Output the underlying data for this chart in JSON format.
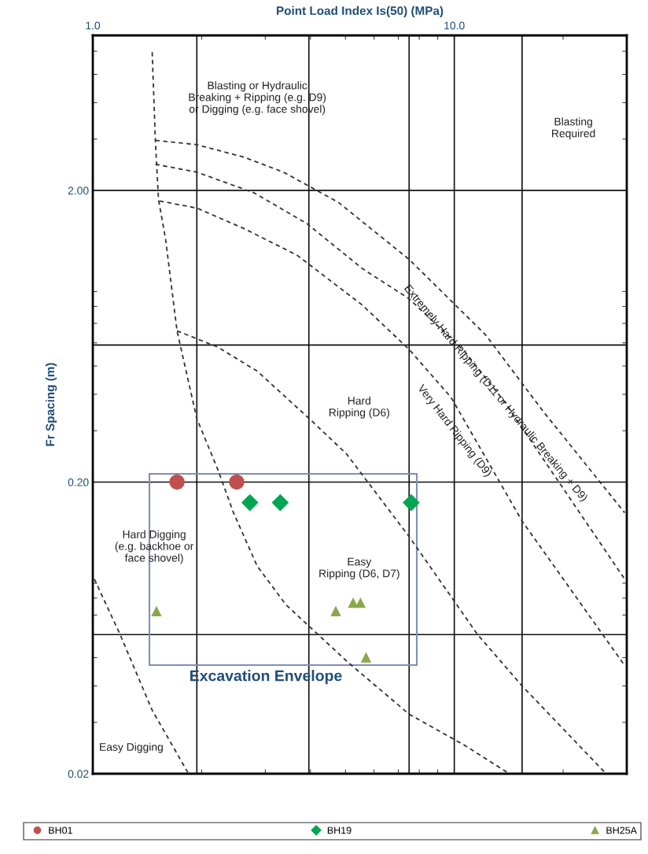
{
  "chart_data": {
    "type": "scatter",
    "xlabel": "Point Load Index Is(50) (MPa)",
    "ylabel": "Fr Spacing (m)",
    "log": "xy",
    "xlim": [
      1,
      30
    ],
    "ylim": [
      0.02,
      6.8
    ],
    "xticks": [
      {
        "value": 1,
        "label": "1.0"
      },
      {
        "value": 1.94,
        "label": null
      },
      {
        "value": 3.96,
        "label": null
      },
      {
        "value": 7.5,
        "label": null
      },
      {
        "value": 10,
        "label": "10.0"
      },
      {
        "value": 15.4,
        "label": null
      }
    ],
    "yticks": [
      {
        "value": 0.02,
        "label": "0.02"
      },
      {
        "value": 0.06,
        "label": null
      },
      {
        "value": 0.2,
        "label": "0.20"
      },
      {
        "value": 0.59,
        "label": null
      },
      {
        "value": 2,
        "label": "2.00"
      }
    ],
    "grid": true,
    "legend": "bottom",
    "series": [
      {
        "type": "line",
        "line_style": "dashed",
        "marker": "none",
        "color": "#333333",
        "x": [
          1.46,
          1.49,
          1.52,
          1.59,
          1.71,
          1.94,
          2.22,
          2.45,
          2.85,
          3.42,
          3.97,
          5.1,
          7.5,
          10.7,
          14.2
        ],
        "values": [
          5.96,
          2.94,
          1.86,
          1.36,
          0.66,
          0.33,
          0.22,
          0.157,
          0.103,
          0.076,
          0.064,
          0.048,
          0.032,
          0.025,
          0.02
        ]
      },
      {
        "type": "line",
        "line_style": "dashed",
        "marker": "none",
        "color": "#333333",
        "x": [
          1.49,
          1.94,
          2.62,
          3.37,
          4.78,
          7.5,
          12.2,
          17.6,
          29.6
        ],
        "values": [
          2.97,
          2.87,
          2.6,
          2.31,
          1.82,
          1.16,
          0.64,
          0.35,
          0.157
        ]
      },
      {
        "type": "line",
        "line_style": "dashed",
        "marker": "none",
        "color": "#333333",
        "x": [
          1.49,
          1.94,
          2.8,
          3.91,
          5.56,
          7.5,
          10.7,
          13.7,
          29.6
        ],
        "values": [
          2.46,
          2.31,
          1.96,
          1.54,
          1.08,
          0.85,
          0.56,
          0.38,
          0.093
        ]
      },
      {
        "type": "line",
        "line_style": "dashed",
        "marker": "none",
        "color": "#333333",
        "x": [
          1.53,
          1.94,
          2.62,
          3.67,
          5.56,
          7.5,
          9.8,
          15.4,
          29.6
        ],
        "values": [
          1.84,
          1.74,
          1.48,
          1.2,
          0.81,
          0.57,
          0.39,
          0.147,
          0.047
        ]
      },
      {
        "type": "line",
        "line_style": "dashed",
        "marker": "none",
        "color": "#333333",
        "x": [
          1.71,
          2.22,
          2.85,
          3.97,
          5.03,
          7.5,
          11.6,
          15.4,
          26.3
        ],
        "values": [
          0.66,
          0.58,
          0.48,
          0.33,
          0.25,
          0.13,
          0.06,
          0.04,
          0.02
        ]
      },
      {
        "type": "line",
        "line_style": "dashed",
        "marker": "none",
        "color": "#333333",
        "x": [
          1.01,
          1.19,
          1.46,
          1.84
        ],
        "values": [
          0.093,
          0.06,
          0.033,
          0.02
        ]
      },
      {
        "name": "BH01",
        "marker": "circle",
        "color": "#c0504d",
        "x": [
          1.71,
          2.5
        ],
        "values": [
          0.2,
          0.2
        ]
      },
      {
        "name": "BH19",
        "marker": "diamond",
        "color": "#00a651",
        "x": [
          2.72,
          3.3,
          7.6
        ],
        "values": [
          0.17,
          0.17,
          0.17
        ]
      },
      {
        "name": "BH25A",
        "marker": "triangle",
        "color": "#8aa84b",
        "x": [
          1.5,
          4.7,
          5.25,
          5.5,
          5.7
        ],
        "values": [
          0.072,
          0.072,
          0.077,
          0.077,
          0.05
        ]
      }
    ],
    "annotations": [
      "Blasting or Hydraulic\nBreaking + Ripping (e.g. D9)\nor Digging (e.g. face shovel)",
      "Blasting\nRequired",
      "Extremely Hard Ripping (D11 or Hydraulic Breaking + D9)",
      "Very Hard Ripping (D9)",
      "Hard\nRipping (D6)",
      "Hard Digging\n(e.g. backhoe or\nface shovel)",
      "Easy\nRipping (D6, D7)",
      "Easy Digging",
      "Excavation Envelope"
    ]
  }
}
